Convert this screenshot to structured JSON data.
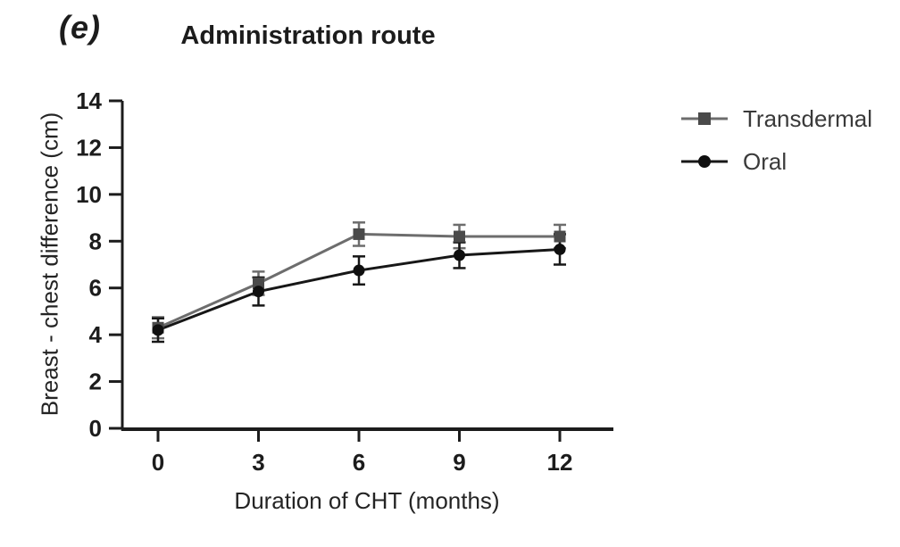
{
  "figure": {
    "label": "(e)",
    "title": "Administration route"
  },
  "colors": {
    "axis": "#1c1c1c",
    "tick_text": "#1c1c1c",
    "background": "#ffffff",
    "transdermal_line": "#6d6d6d",
    "transdermal_marker": "#4a4a4a",
    "oral_line": "#171717",
    "oral_marker": "#0f0f0f",
    "legend_text": "#3a3a3a"
  },
  "legend": {
    "items": [
      {
        "label": "Transdermal",
        "marker": "square"
      },
      {
        "label": "Oral",
        "marker": "circle"
      }
    ]
  },
  "chart_data": {
    "type": "line",
    "title": "Administration route",
    "xlabel": "Duration of CHT (months)",
    "ylabel": "Breast - chest difference (cm)",
    "x": [
      0,
      3,
      6,
      9,
      12
    ],
    "xticks": [
      "0",
      "3",
      "6",
      "9",
      "12"
    ],
    "yticks": [
      "0",
      "2",
      "4",
      "6",
      "8",
      "10",
      "12",
      "14"
    ],
    "ytick_values": [
      0,
      2,
      4,
      6,
      8,
      10,
      12,
      14
    ],
    "xlim": [
      -1.1,
      13.6
    ],
    "ylim": [
      0,
      14
    ],
    "grid": false,
    "legend_position": "right",
    "error_bars": true,
    "series": [
      {
        "name": "Transdermal",
        "marker": "square",
        "values": [
          4.3,
          6.2,
          8.3,
          8.2,
          8.2
        ],
        "errors": [
          0.45,
          0.5,
          0.5,
          0.5,
          0.5
        ],
        "line_color": "#6d6d6d",
        "marker_color": "#4a4a4a"
      },
      {
        "name": "Oral",
        "marker": "circle",
        "values": [
          4.2,
          5.85,
          6.75,
          7.4,
          7.65
        ],
        "errors": [
          0.5,
          0.6,
          0.6,
          0.55,
          0.65
        ],
        "line_color": "#171717",
        "marker_color": "#0f0f0f"
      }
    ]
  }
}
